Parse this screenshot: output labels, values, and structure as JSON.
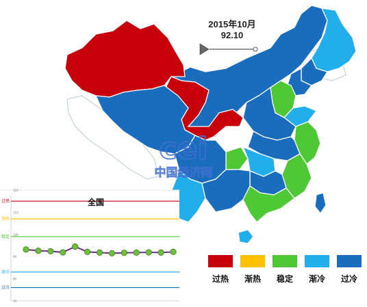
{
  "period": {
    "date": "2015年10月",
    "index": "92.10"
  },
  "legend": [
    {
      "label": "过热",
      "color": "#c8000b"
    },
    {
      "label": "渐热",
      "color": "#ffc000"
    },
    {
      "label": "稳定",
      "color": "#4ec935"
    },
    {
      "label": "渐冷",
      "color": "#22aeea"
    },
    {
      "label": "过冷",
      "color": "#1a6dbd"
    }
  ],
  "watermark": {
    "text": "中国经济网"
  },
  "inset": {
    "title": "全国",
    "zones": [
      "过热",
      "渐热",
      "稳定",
      "渐冷",
      "过冷"
    ],
    "tick_labels": [
      "120",
      "110",
      "100",
      "90",
      "80",
      "70"
    ]
  },
  "chart_data": {
    "type": "line",
    "title": "全国",
    "ylim": [
      70,
      120
    ],
    "y_ticks": [
      120,
      110,
      100,
      90,
      80,
      70
    ],
    "threshold_lines": [
      {
        "value": 115,
        "label": "过热",
        "color": "#c8000b"
      },
      {
        "value": 107,
        "label": "渐热",
        "color": "#ffc000"
      },
      {
        "value": 99,
        "label": "稳定",
        "color": "#4ec935"
      },
      {
        "value": 83,
        "label": "渐冷",
        "color": "#22aeea"
      },
      {
        "value": 76,
        "label": "过冷",
        "color": "#1a6dbd"
      }
    ],
    "series": [
      {
        "values": [
          93.2,
          92.6,
          92.4,
          91.9,
          94.5,
          92.1,
          91.8,
          91.5,
          91.7,
          91.8,
          91.9,
          91.8,
          92.1
        ]
      }
    ]
  }
}
